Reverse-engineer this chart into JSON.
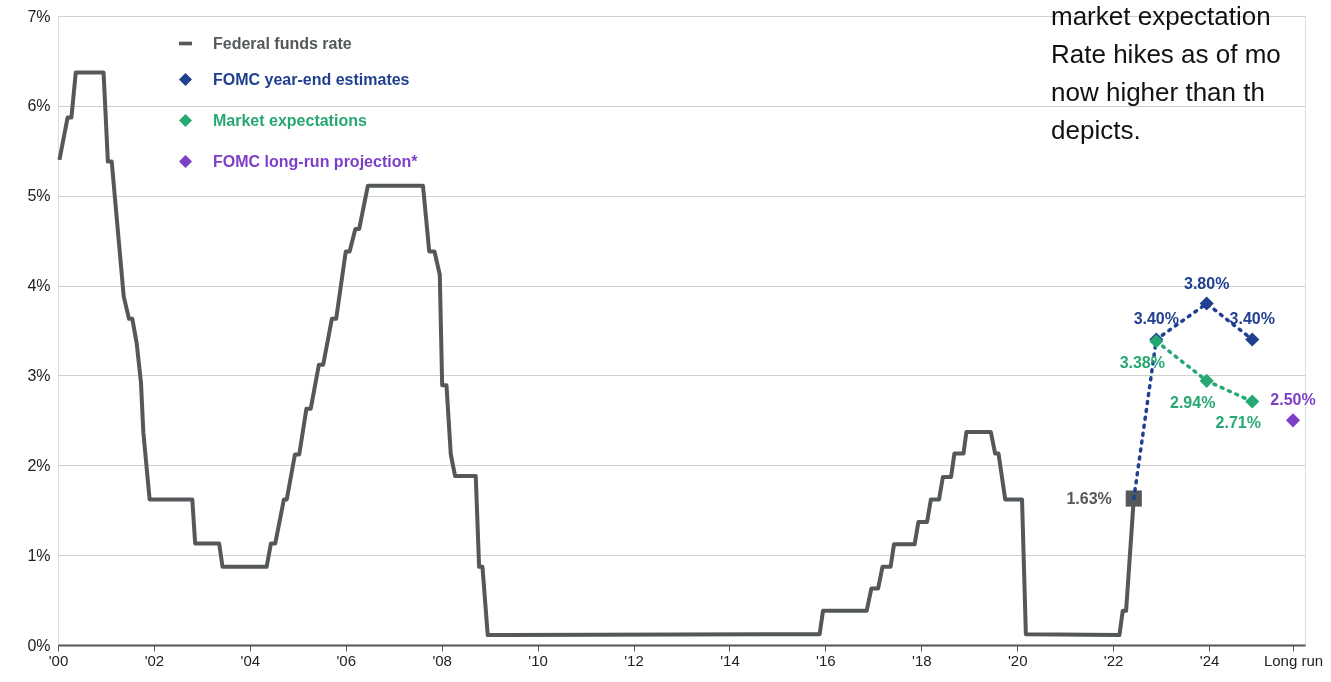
{
  "chart_data": {
    "type": "line",
    "xlim": [
      2000,
      2026
    ],
    "xticks": [
      {
        "value": 2000,
        "label": "'00"
      },
      {
        "value": 2002,
        "label": "'02"
      },
      {
        "value": 2004,
        "label": "'04"
      },
      {
        "value": 2006,
        "label": "'06"
      },
      {
        "value": 2008,
        "label": "'08"
      },
      {
        "value": 2010,
        "label": "'10"
      },
      {
        "value": 2012,
        "label": "'12"
      },
      {
        "value": 2014,
        "label": "'14"
      },
      {
        "value": 2016,
        "label": "'16"
      },
      {
        "value": 2018,
        "label": "'18"
      },
      {
        "value": 2020,
        "label": "'20"
      },
      {
        "value": 2022,
        "label": "'22"
      },
      {
        "value": 2024,
        "label": "'24"
      },
      {
        "value": 2025.75,
        "label": "Long run"
      }
    ],
    "ylim": [
      0,
      7
    ],
    "yticks": [
      {
        "value": 0,
        "label": "0%"
      },
      {
        "value": 1,
        "label": "1%"
      },
      {
        "value": 2,
        "label": "2%"
      },
      {
        "value": 3,
        "label": "3%"
      },
      {
        "value": 4,
        "label": "4%"
      },
      {
        "value": 5,
        "label": "5%"
      },
      {
        "value": 6,
        "label": "6%"
      },
      {
        "value": 7,
        "label": "7%"
      }
    ],
    "grid": "y",
    "legend": "top left",
    "annotations": [
      "market expectation\nRate hikes as of mo\nnow higher than th\ndepicts."
    ],
    "series": [
      {
        "name": "Federal funds rate",
        "type": "line",
        "color": "#54585a",
        "marker": "none",
        "line_style": "solid",
        "x": [
          2000.03,
          2000.2,
          2000.28,
          2000.37,
          2000.95,
          2001.04,
          2001.12,
          2001.37,
          2001.48,
          2001.55,
          2001.64,
          2001.73,
          2001.78,
          2001.91,
          2002.8,
          2002.86,
          2003.36,
          2003.43,
          2004.35,
          2004.44,
          2004.53,
          2004.71,
          2004.77,
          2004.94,
          2005.03,
          2005.18,
          2005.27,
          2005.44,
          2005.53,
          2005.71,
          2005.8,
          2006.0,
          2006.08,
          2006.2,
          2006.28,
          2006.46,
          2007.61,
          2007.74,
          2007.85,
          2007.96,
          2008.01,
          2008.1,
          2008.19,
          2008.28,
          2008.71,
          2008.78,
          2008.85,
          2008.96,
          2015.88,
          2015.95,
          2016.86,
          2016.96,
          2017.1,
          2017.19,
          2017.36,
          2017.43,
          2017.86,
          2017.94,
          2018.12,
          2018.2,
          2018.37,
          2018.45,
          2018.62,
          2018.69,
          2018.88,
          2018.94,
          2019.45,
          2019.54,
          2019.61,
          2019.75,
          2020.1,
          2020.18,
          2022.13,
          2022.2,
          2022.27,
          2022.43
        ],
        "values": [
          5.4,
          5.87,
          5.87,
          6.37,
          6.37,
          5.38,
          5.38,
          3.88,
          3.63,
          3.63,
          3.36,
          2.92,
          2.36,
          1.62,
          1.62,
          1.13,
          1.13,
          0.87,
          0.87,
          1.13,
          1.13,
          1.62,
          1.62,
          2.12,
          2.12,
          2.63,
          2.63,
          3.12,
          3.12,
          3.63,
          3.63,
          4.38,
          4.38,
          4.63,
          4.63,
          5.11,
          5.11,
          4.38,
          4.38,
          4.12,
          2.89,
          2.89,
          2.12,
          1.88,
          1.88,
          0.87,
          0.87,
          0.11,
          0.12,
          0.38,
          0.38,
          0.63,
          0.63,
          0.87,
          0.87,
          1.12,
          1.12,
          1.37,
          1.37,
          1.62,
          1.62,
          1.87,
          1.87,
          2.13,
          2.13,
          2.37,
          2.37,
          2.13,
          2.13,
          1.62,
          1.62,
          0.12,
          0.11,
          0.38,
          0.38,
          1.63
        ]
      },
      {
        "type": "scatter",
        "color": "#54585a",
        "marker": "square",
        "x": [
          2022.43
        ],
        "values": [
          1.63
        ],
        "value_labels": [
          "1.63%"
        ]
      },
      {
        "name": "FOMC year-end estimates",
        "type": "line",
        "color": "#1f3f8f",
        "marker": "diamond",
        "line_style": "dotted",
        "x": [
          2022.43,
          2022.9,
          2023.95,
          2024.9
        ],
        "values": [
          1.63,
          3.4,
          3.8,
          3.4
        ],
        "value_labels": [
          null,
          "3.40%",
          "3.80%",
          "3.40%"
        ]
      },
      {
        "name": "Market expectations",
        "type": "line",
        "color": "#27a873",
        "marker": "diamond",
        "line_style": "dotted",
        "x": [
          2022.9,
          2023.95,
          2024.9
        ],
        "values": [
          3.38,
          2.94,
          2.71
        ],
        "value_labels": [
          "3.38%",
          "2.94%",
          "2.71%"
        ]
      },
      {
        "name": "FOMC long-run projection*",
        "type": "scatter",
        "color": "#7e3fc7",
        "marker": "diamond",
        "x": [
          2025.75
        ],
        "values": [
          2.5
        ],
        "value_labels": [
          "2.50%"
        ]
      }
    ]
  }
}
